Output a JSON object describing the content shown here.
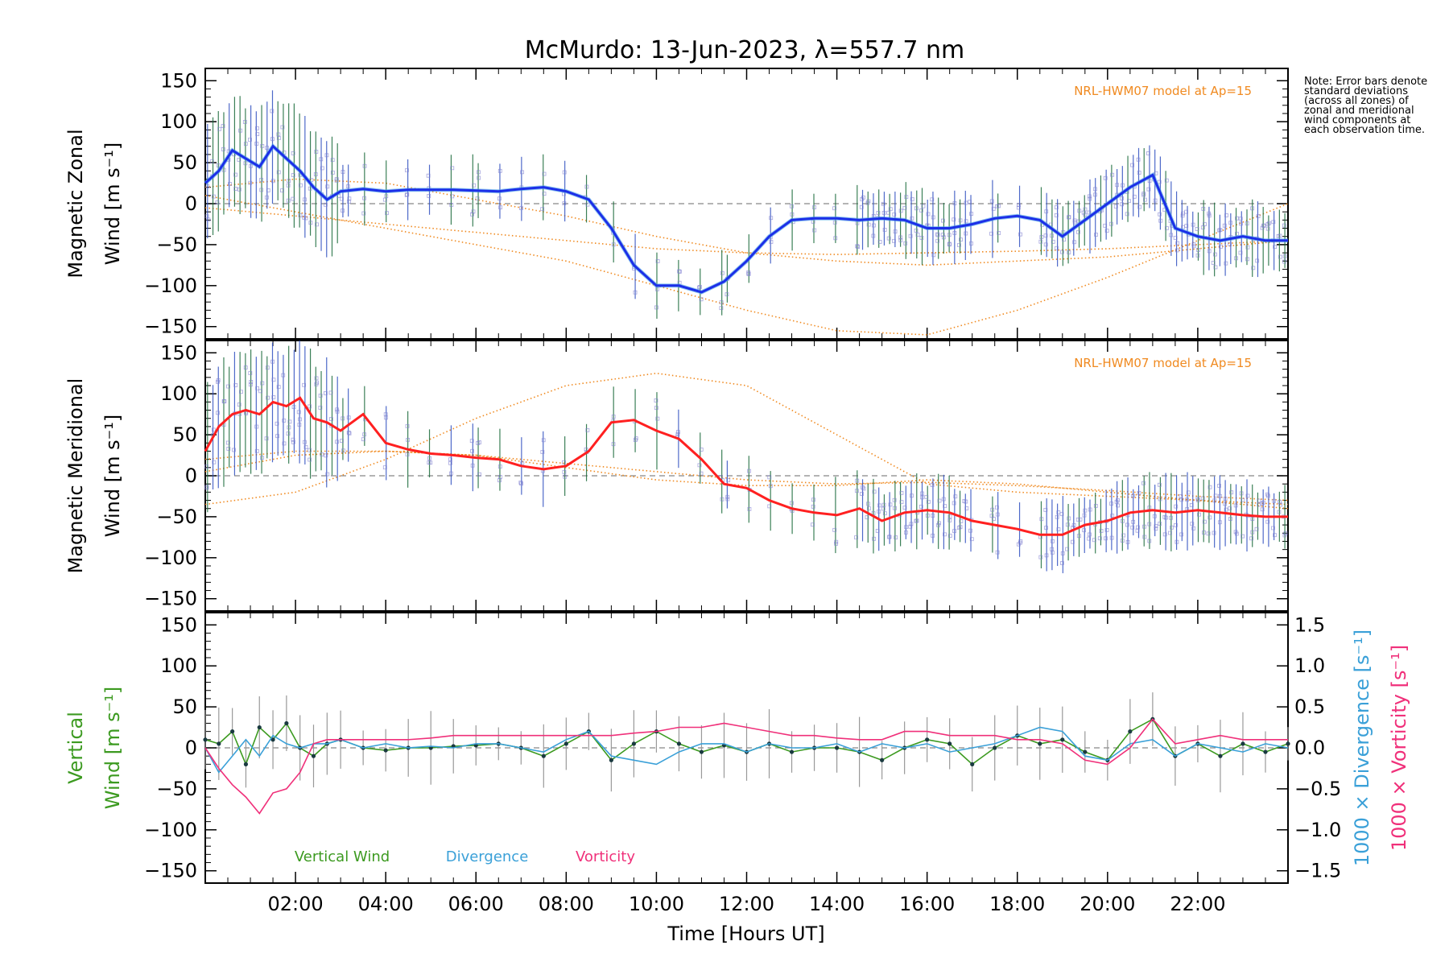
{
  "title": "McMurdo: 13-Jun-2023, λ=557.7 nm",
  "note": "Note: Error bars denote standard deviations (across all zones) of zonal and meridional wind components at each observation time.",
  "x_axis": {
    "label": "Time [Hours UT]",
    "range_hours": [
      0,
      24
    ],
    "ticks": [
      2,
      4,
      6,
      8,
      10,
      12,
      14,
      16,
      18,
      20,
      22
    ],
    "tick_labels": [
      "02:00",
      "04:00",
      "06:00",
      "08:00",
      "10:00",
      "12:00",
      "14:00",
      "16:00",
      "18:00",
      "20:00",
      "22:00"
    ]
  },
  "colors": {
    "zonal": "#1c2fe8",
    "zonal_light": "#4aa3e6",
    "meridional": "#ff2020",
    "model": "#f08a20",
    "vertical": "#3c9a20",
    "divergence": "#3aa0d8",
    "vorticity": "#f0307a",
    "zone_points": "#8080d0",
    "zero_line": "#888888",
    "errbar_dark": "#1a6a3a"
  },
  "chart_data": [
    {
      "type": "line",
      "panel": "zonal",
      "ylabel_line1": "Magnetic Zonal",
      "ylabel_line2": "Wind [m s⁻¹]",
      "ylim": [
        -165,
        165
      ],
      "yticks": [
        -150,
        -100,
        -50,
        0,
        50,
        100,
        150
      ],
      "ytick_labels": [
        "−150",
        "−100",
        "−50",
        "0",
        "50",
        "100",
        "150"
      ],
      "model_label": "NRL-HWM07 model at Ap=15",
      "x": [
        0.0,
        0.3,
        0.6,
        0.9,
        1.2,
        1.5,
        1.8,
        2.1,
        2.4,
        2.7,
        3.0,
        3.5,
        4.0,
        4.5,
        5.0,
        5.5,
        6.0,
        6.5,
        7.0,
        7.5,
        8.0,
        8.5,
        9.0,
        9.5,
        10.0,
        10.5,
        11.0,
        11.5,
        12.0,
        12.5,
        13.0,
        13.5,
        14.0,
        14.5,
        15.0,
        15.5,
        16.0,
        16.5,
        17.0,
        17.5,
        18.0,
        18.5,
        19.0,
        19.5,
        20.0,
        20.5,
        21.0,
        21.5,
        22.0,
        22.5,
        23.0,
        23.5,
        24.0
      ],
      "values": [
        25,
        40,
        65,
        55,
        45,
        70,
        55,
        40,
        20,
        5,
        15,
        18,
        15,
        17,
        17,
        17,
        16,
        15,
        18,
        20,
        15,
        5,
        -30,
        -75,
        -100,
        -100,
        -108,
        -95,
        -70,
        -40,
        -20,
        -18,
        -18,
        -20,
        -18,
        -20,
        -30,
        -30,
        -25,
        -18,
        -15,
        -20,
        -40,
        -20,
        0,
        20,
        35,
        -30,
        -40,
        -45,
        -40,
        -45,
        -45
      ],
      "model_curves": [
        {
          "x": [
            0,
            2,
            4,
            6,
            8,
            10,
            12,
            14,
            16,
            18,
            20,
            22,
            24
          ],
          "y": [
            20,
            30,
            25,
            5,
            -15,
            -40,
            -60,
            -70,
            -75,
            -70,
            -65,
            -55,
            -45
          ]
        },
        {
          "x": [
            0,
            2,
            4,
            6,
            8,
            10,
            12,
            14,
            16,
            18,
            20,
            22,
            24
          ],
          "y": [
            10,
            -10,
            -30,
            -50,
            -70,
            -100,
            -130,
            -155,
            -160,
            -130,
            -90,
            -45,
            0
          ]
        },
        {
          "x": [
            0,
            2,
            4,
            6,
            8,
            10,
            12,
            14,
            16,
            18,
            20,
            22,
            24
          ],
          "y": [
            -5,
            -15,
            -25,
            -35,
            -45,
            -55,
            -60,
            -62,
            -60,
            -58,
            -55,
            -50,
            -45
          ]
        }
      ]
    },
    {
      "type": "line",
      "panel": "meridional",
      "ylabel_line1": "Magnetic Meridional",
      "ylabel_line2": "Wind [m s⁻¹]",
      "ylim": [
        -165,
        165
      ],
      "yticks": [
        -150,
        -100,
        -50,
        0,
        50,
        100,
        150
      ],
      "ytick_labels": [
        "−150",
        "−100",
        "−50",
        "0",
        "50",
        "100",
        "150"
      ],
      "model_label": "NRL-HWM07 model at Ap=15",
      "x": [
        0.0,
        0.3,
        0.6,
        0.9,
        1.2,
        1.5,
        1.8,
        2.1,
        2.4,
        2.7,
        3.0,
        3.5,
        4.0,
        4.5,
        5.0,
        5.5,
        6.0,
        6.5,
        7.0,
        7.5,
        8.0,
        8.5,
        9.0,
        9.5,
        10.0,
        10.5,
        11.0,
        11.5,
        12.0,
        12.5,
        13.0,
        13.5,
        14.0,
        14.5,
        15.0,
        15.5,
        16.0,
        16.5,
        17.0,
        17.5,
        18.0,
        18.5,
        19.0,
        19.5,
        20.0,
        20.5,
        21.0,
        21.5,
        22.0,
        22.5,
        23.0,
        23.5,
        24.0
      ],
      "values": [
        30,
        60,
        75,
        80,
        75,
        90,
        85,
        95,
        70,
        65,
        55,
        75,
        40,
        32,
        27,
        25,
        22,
        20,
        12,
        8,
        12,
        30,
        65,
        68,
        55,
        45,
        20,
        -10,
        -15,
        -30,
        -40,
        -45,
        -48,
        -40,
        -55,
        -45,
        -42,
        -45,
        -55,
        -60,
        -65,
        -72,
        -72,
        -60,
        -55,
        -45,
        -42,
        -45,
        -42,
        -45,
        -48,
        -50,
        -50
      ],
      "model_curves": [
        {
          "x": [
            0,
            2,
            4,
            6,
            8,
            10,
            12,
            14,
            16,
            18,
            20,
            22,
            24
          ],
          "y": [
            -35,
            -20,
            20,
            70,
            110,
            125,
            110,
            50,
            -10,
            -20,
            -25,
            -30,
            -40
          ]
        },
        {
          "x": [
            0,
            2,
            4,
            6,
            8,
            10,
            12,
            14,
            16,
            18,
            20,
            22,
            24
          ],
          "y": [
            5,
            25,
            30,
            25,
            10,
            -5,
            -12,
            -12,
            -5,
            -10,
            -20,
            -30,
            -35
          ]
        },
        {
          "x": [
            0,
            2,
            4,
            6,
            8,
            10,
            12,
            14,
            16,
            18,
            20,
            22,
            24
          ],
          "y": [
            20,
            30,
            30,
            25,
            15,
            5,
            -5,
            -10,
            -8,
            -12,
            -18,
            -25,
            -30
          ]
        }
      ]
    },
    {
      "type": "line",
      "panel": "vertical",
      "ylabel_line1": "Vertical",
      "ylabel_line2": "Wind [m s⁻¹]",
      "ylim": [
        -165,
        165
      ],
      "yticks": [
        -150,
        -100,
        -50,
        0,
        50,
        100,
        150
      ],
      "ytick_labels": [
        "−150",
        "−100",
        "−50",
        "0",
        "50",
        "100",
        "150"
      ],
      "right_axis": {
        "label_divergence": "1000 × Divergence [s⁻¹]",
        "label_vorticity": "1000 × Vorticity [s⁻¹]",
        "ylim": [
          -1.65,
          1.65
        ],
        "ticks": [
          -1.5,
          -1.0,
          -0.5,
          0.0,
          0.5,
          1.0,
          1.5
        ],
        "tick_labels": [
          "−1.5",
          "−1.0",
          "−0.5",
          "0.0",
          "0.5",
          "1.0",
          "1.5"
        ]
      },
      "legend": [
        "Vertical Wind",
        "Divergence",
        "Vorticity"
      ],
      "x": [
        0.0,
        0.3,
        0.6,
        0.9,
        1.2,
        1.5,
        1.8,
        2.1,
        2.4,
        2.7,
        3.0,
        3.5,
        4.0,
        4.5,
        5.0,
        5.5,
        6.0,
        6.5,
        7.0,
        7.5,
        8.0,
        8.5,
        9.0,
        9.5,
        10.0,
        10.5,
        11.0,
        11.5,
        12.0,
        12.5,
        13.0,
        13.5,
        14.0,
        14.5,
        15.0,
        15.5,
        16.0,
        16.5,
        17.0,
        17.5,
        18.0,
        18.5,
        19.0,
        19.5,
        20.0,
        20.5,
        21.0,
        21.5,
        22.0,
        22.5,
        23.0,
        23.5,
        24.0
      ],
      "series": [
        {
          "name": "Vertical Wind",
          "axis": "left",
          "values": [
            10,
            5,
            20,
            -20,
            25,
            10,
            30,
            0,
            -10,
            5,
            10,
            0,
            -3,
            0,
            0,
            2,
            3,
            5,
            0,
            -10,
            5,
            20,
            -15,
            5,
            20,
            5,
            -5,
            3,
            -5,
            5,
            -5,
            0,
            0,
            -5,
            -15,
            0,
            10,
            5,
            -20,
            0,
            15,
            5,
            10,
            -5,
            -15,
            20,
            35,
            -10,
            5,
            -10,
            5,
            -5,
            5
          ]
        },
        {
          "name": "Divergence",
          "axis": "right",
          "values": [
            0.0,
            -0.3,
            -0.1,
            0.1,
            -0.1,
            0.15,
            0.05,
            0.0,
            0.05,
            0.05,
            0.1,
            0.0,
            0.05,
            0.0,
            0.02,
            0.0,
            0.05,
            0.05,
            0.0,
            -0.05,
            0.1,
            0.2,
            -0.1,
            -0.15,
            -0.2,
            -0.05,
            0.05,
            0.05,
            -0.05,
            0.05,
            0.0,
            0.0,
            0.05,
            -0.05,
            0.05,
            0.0,
            0.05,
            -0.05,
            0.0,
            0.05,
            0.15,
            0.25,
            0.2,
            -0.1,
            -0.15,
            0.05,
            0.1,
            -0.1,
            0.05,
            0.0,
            -0.05,
            0.05,
            0.0
          ]
        },
        {
          "name": "Vorticity",
          "axis": "right",
          "values": [
            0.0,
            -0.25,
            -0.45,
            -0.6,
            -0.8,
            -0.55,
            -0.5,
            -0.3,
            0.05,
            0.1,
            0.1,
            0.1,
            0.1,
            0.1,
            0.12,
            0.15,
            0.15,
            0.15,
            0.15,
            0.15,
            0.15,
            0.15,
            0.15,
            0.18,
            0.2,
            0.25,
            0.25,
            0.3,
            0.25,
            0.2,
            0.15,
            0.15,
            0.12,
            0.1,
            0.1,
            0.2,
            0.2,
            0.15,
            0.15,
            0.15,
            0.1,
            0.1,
            0.05,
            -0.15,
            -0.2,
            0.0,
            0.35,
            0.05,
            0.1,
            0.15,
            0.1,
            0.1,
            0.1
          ]
        }
      ]
    }
  ]
}
